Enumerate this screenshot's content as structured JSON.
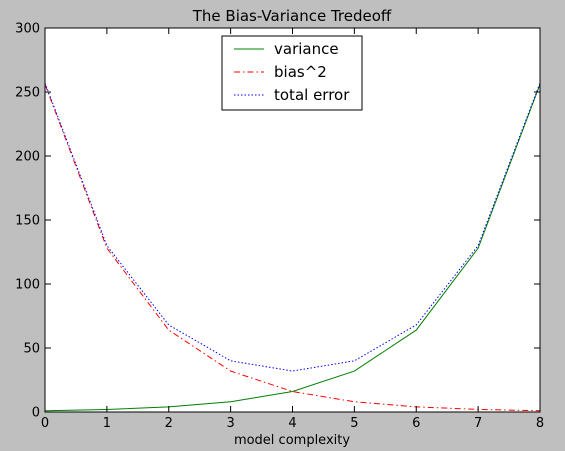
{
  "chart_data": {
    "type": "line",
    "title": "The Bias-Variance Tredeoff",
    "xlabel": "model complexity",
    "ylabel": "",
    "xlim": [
      0,
      8
    ],
    "ylim": [
      0,
      300
    ],
    "xticks": [
      0,
      1,
      2,
      3,
      4,
      5,
      6,
      7,
      8
    ],
    "yticks": [
      0,
      50,
      100,
      150,
      200,
      250,
      300
    ],
    "grid": false,
    "legend_position": "top-center",
    "x": [
      0,
      1,
      2,
      3,
      4,
      5,
      6,
      7,
      8
    ],
    "series": [
      {
        "name": "variance",
        "values": [
          1,
          2,
          4,
          8,
          16,
          32,
          64,
          128,
          256
        ],
        "color": "#008000",
        "style": "solid"
      },
      {
        "name": "bias^2",
        "values": [
          256,
          128,
          64,
          32,
          16,
          8,
          4,
          2,
          1
        ],
        "color": "#ff0000",
        "style": "dashdot"
      },
      {
        "name": "total error",
        "values": [
          257,
          130,
          68,
          40,
          32,
          40,
          68,
          130,
          257
        ],
        "color": "#0000ff",
        "style": "dotted"
      }
    ]
  }
}
